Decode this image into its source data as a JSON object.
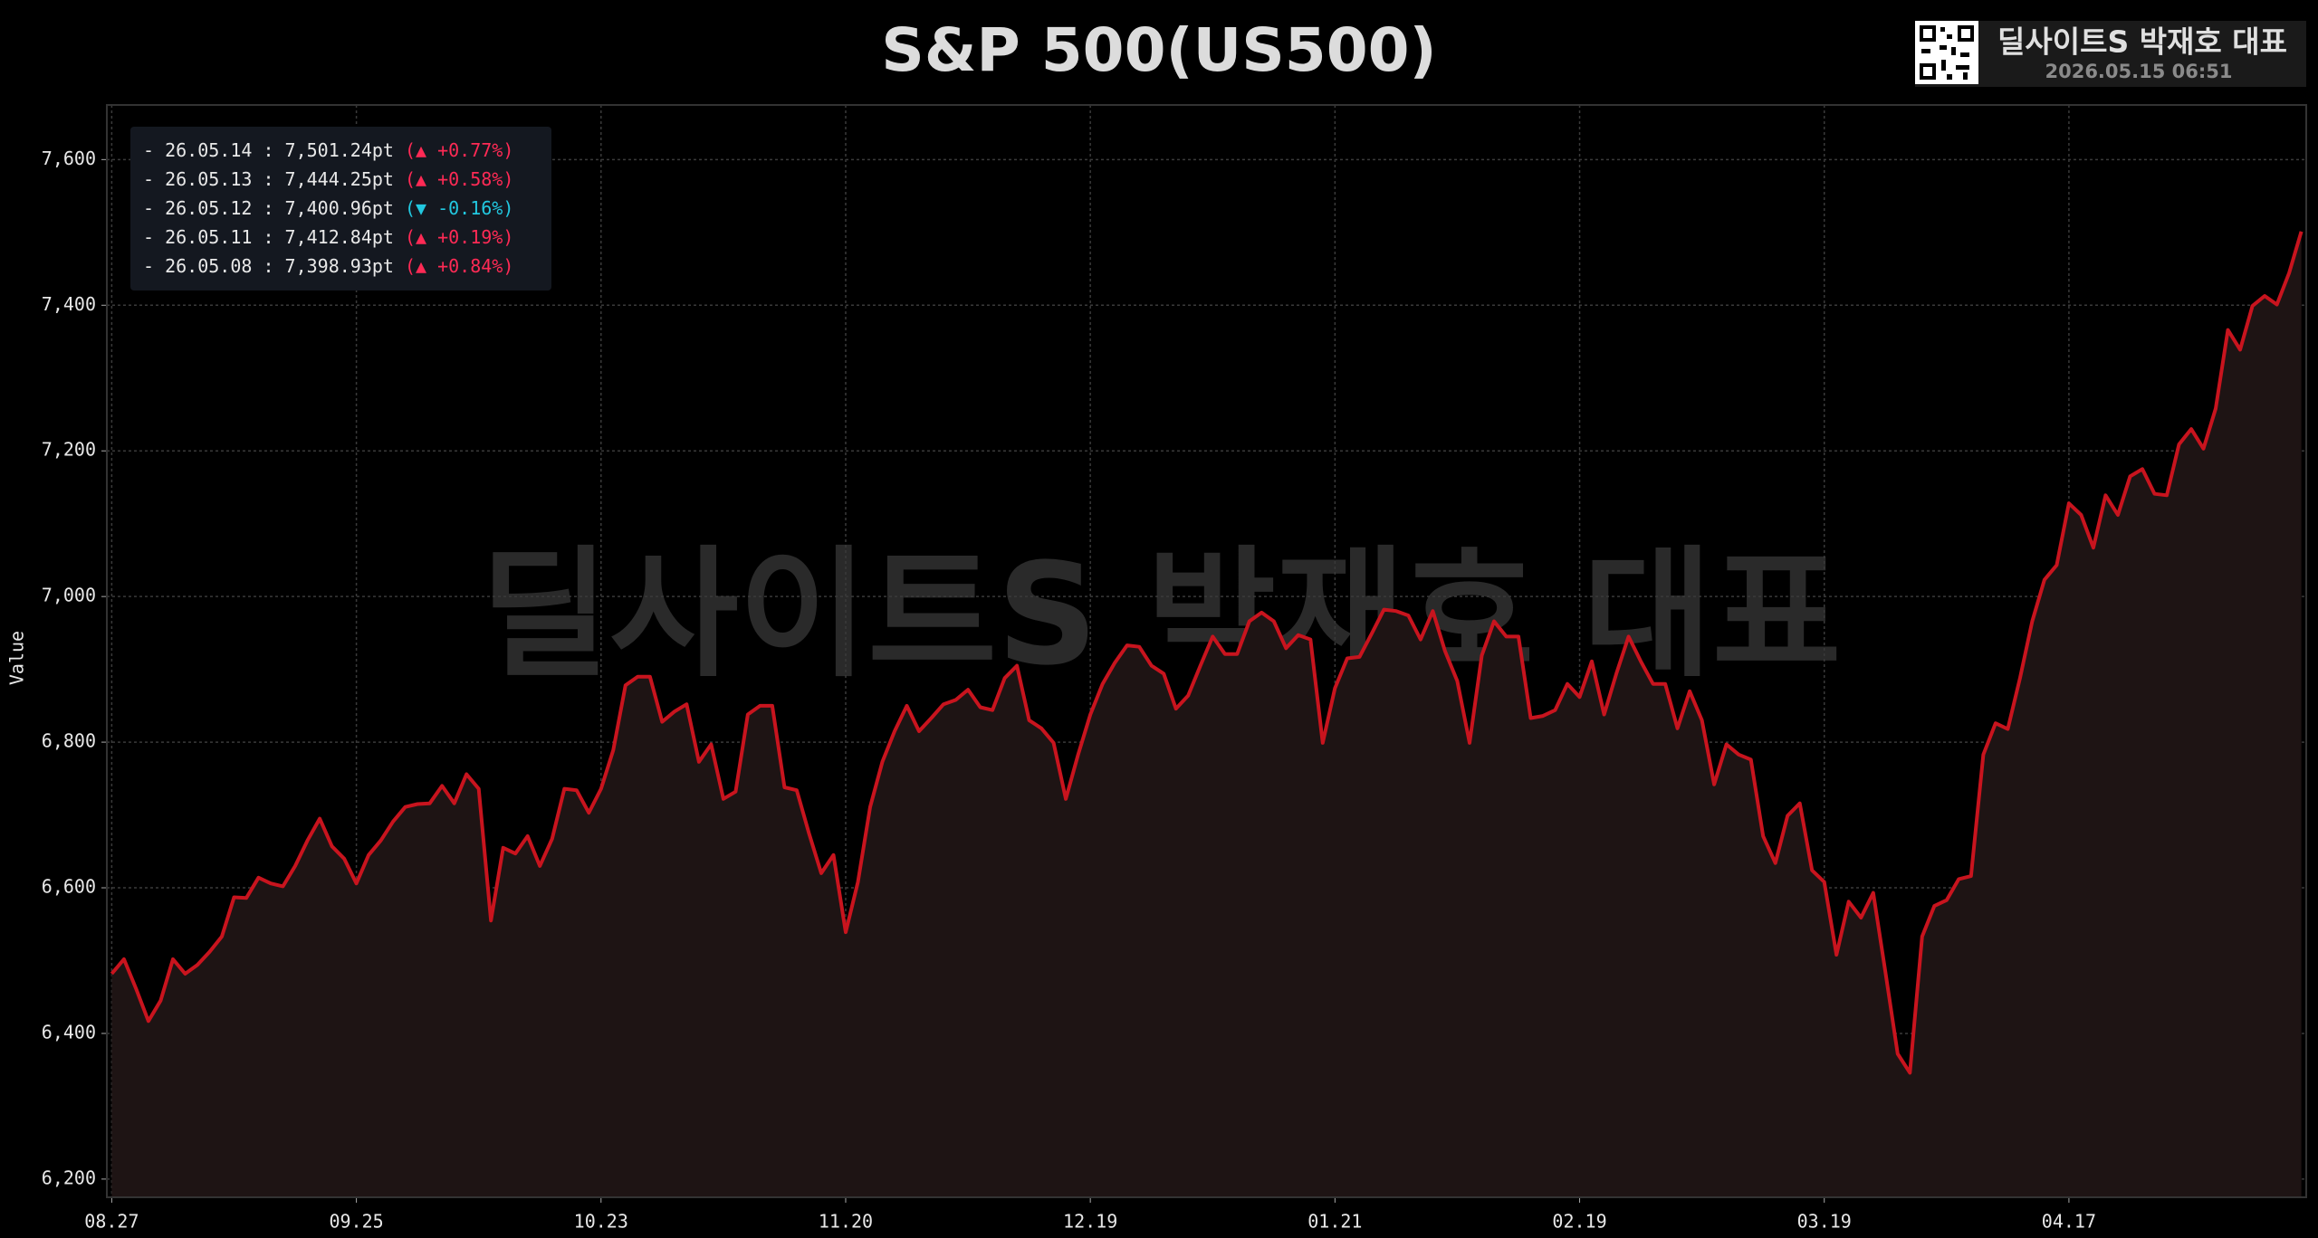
{
  "chart_data": {
    "type": "line",
    "title": "S&P 500(US500)",
    "watermark": "딜사이트S 박재호 대표",
    "badge": {
      "name": "딜사이트S 박재호 대표",
      "timestamp": "2026.05.15 06:51"
    },
    "y_label": "Value",
    "categories": [
      "08.27",
      null,
      null,
      null,
      null,
      null,
      null,
      null,
      null,
      null,
      null,
      null,
      null,
      null,
      null,
      null,
      null,
      null,
      null,
      null,
      "09.25",
      null,
      null,
      null,
      null,
      null,
      null,
      null,
      null,
      null,
      null,
      null,
      null,
      null,
      null,
      null,
      null,
      null,
      null,
      null,
      "10.23",
      null,
      null,
      null,
      null,
      null,
      null,
      null,
      null,
      null,
      null,
      null,
      null,
      null,
      null,
      null,
      null,
      null,
      null,
      null,
      "11.20",
      null,
      null,
      null,
      null,
      null,
      null,
      null,
      null,
      null,
      null,
      null,
      null,
      null,
      null,
      null,
      null,
      null,
      null,
      null,
      "12.19",
      null,
      null,
      null,
      null,
      null,
      null,
      null,
      null,
      null,
      null,
      null,
      null,
      null,
      null,
      null,
      null,
      null,
      null,
      null,
      "01.21",
      null,
      null,
      null,
      null,
      null,
      null,
      null,
      null,
      null,
      null,
      null,
      null,
      null,
      null,
      null,
      null,
      null,
      null,
      null,
      "02.19",
      null,
      null,
      null,
      null,
      null,
      null,
      null,
      null,
      null,
      null,
      null,
      null,
      null,
      null,
      null,
      null,
      null,
      null,
      null,
      "03.19",
      null,
      null,
      null,
      null,
      null,
      null,
      null,
      null,
      null,
      null,
      null,
      null,
      null,
      null,
      null,
      null,
      null,
      null,
      null,
      "04.17",
      null,
      null,
      null,
      null,
      null,
      null,
      null,
      null,
      null,
      null,
      null,
      null,
      null,
      null,
      null,
      null,
      null,
      null,
      null
    ],
    "series": [
      {
        "name": "S&P 500",
        "color": "#c8141e",
        "values": [
          6482,
          6502,
          6461,
          6417,
          6445,
          6502,
          6482,
          6494,
          6512,
          6533,
          6587,
          6586,
          6614,
          6606,
          6602,
          6630,
          6665,
          6695,
          6657,
          6640,
          6606,
          6645,
          6665,
          6691,
          6711,
          6715,
          6716,
          6740,
          6716,
          6756,
          6736,
          6555,
          6655,
          6647,
          6671,
          6630,
          6667,
          6736,
          6734,
          6703,
          6736,
          6789,
          6878,
          6890,
          6890,
          6828,
          6842,
          6852,
          6773,
          6797,
          6722,
          6732,
          6838,
          6850,
          6850,
          6738,
          6734,
          6675,
          6620,
          6645,
          6539,
          6608,
          6711,
          6773,
          6815,
          6850,
          6815,
          6833,
          6852,
          6858,
          6872,
          6848,
          6844,
          6888,
          6905,
          6830,
          6819,
          6799,
          6722,
          6783,
          6838,
          6880,
          6909,
          6933,
          6931,
          6905,
          6894,
          6846,
          6864,
          6905,
          6945,
          6921,
          6921,
          6966,
          6978,
          6966,
          6929,
          6947,
          6941,
          6799,
          6874,
          6915,
          6917,
          6949,
          6982,
          6980,
          6974,
          6941,
          6980,
          6925,
          6884,
          6799,
          6919,
          6966,
          6945,
          6945,
          6833,
          6836,
          6844,
          6880,
          6862,
          6911,
          6838,
          6894,
          6945,
          6911,
          6880,
          6880,
          6819,
          6870,
          6830,
          6742,
          6797,
          6783,
          6776,
          6671,
          6634,
          6699,
          6716,
          6624,
          6608,
          6508,
          6581,
          6559,
          6593,
          6484,
          6372,
          6346,
          6533,
          6575,
          6583,
          6612,
          6616,
          6783,
          6826,
          6818,
          6888,
          6966,
          7023,
          7043,
          7128,
          7112,
          7067,
          7139,
          7112,
          7165,
          7175,
          7141,
          7139,
          7209,
          7230,
          7203,
          7258,
          7366,
          7339,
          7398.93,
          7412.84,
          7400.96,
          7444.25,
          7501.24
        ]
      }
    ],
    "ylim": [
      6175,
      7675
    ],
    "yticks": [
      {
        "value": 6200,
        "label": "6,200"
      },
      {
        "value": 6400,
        "label": "6,400"
      },
      {
        "value": 6600,
        "label": "6,600"
      },
      {
        "value": 6800,
        "label": "6,800"
      },
      {
        "value": 7000,
        "label": "7,000"
      },
      {
        "value": 7200,
        "label": "7,200"
      },
      {
        "value": 7400,
        "label": "7,400"
      },
      {
        "value": 7600,
        "label": "7,600"
      }
    ],
    "grid": true,
    "area_fill": "#1e1414",
    "info_box": [
      {
        "text": "- 26.05.14 : 7,501.24pt",
        "change": "(▲ +0.77%)",
        "color": "#ff2a55"
      },
      {
        "text": "- 26.05.13 : 7,444.25pt",
        "change": "(▲ +0.58%)",
        "color": "#ff2a55"
      },
      {
        "text": "- 26.05.12 : 7,400.96pt",
        "change": "(▼ -0.16%)",
        "color": "#22c8e0"
      },
      {
        "text": "- 26.05.11 : 7,412.84pt",
        "change": "(▲ +0.19%)",
        "color": "#ff2a55"
      },
      {
        "text": "- 26.05.08 : 7,398.93pt",
        "change": "(▲ +0.84%)",
        "color": "#ff2a55"
      }
    ]
  }
}
